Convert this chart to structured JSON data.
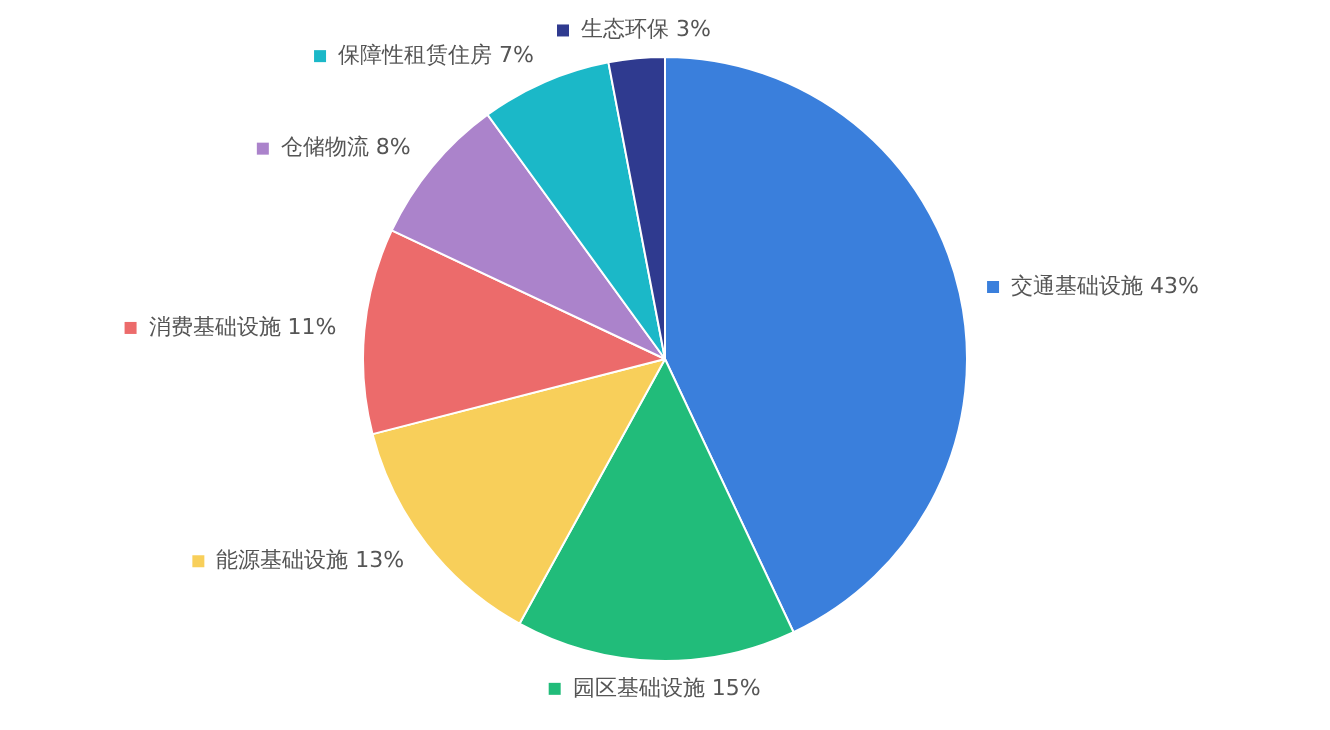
{
  "chart_data": {
    "type": "pie",
    "categories": [
      "交通基础设施",
      "园区基础设施",
      "能源基础设施",
      "消费基础设施",
      "仓储物流",
      "保障性租赁住房",
      "生态环保"
    ],
    "values": [
      43,
      15,
      13,
      11,
      8,
      7,
      3
    ],
    "value_labels": [
      "43%",
      "15%",
      "13%",
      "11%",
      "8%",
      "7%",
      "3%"
    ],
    "colors": [
      "#3a7fdc",
      "#21bc7a",
      "#f8cf5a",
      "#ec6b6b",
      "#ab83cb",
      "#1bb8c8",
      "#2f3a8f"
    ],
    "legend": "top left"
  }
}
